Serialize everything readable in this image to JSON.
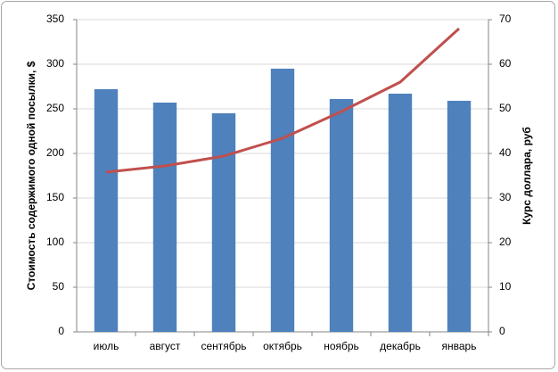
{
  "chart_data": {
    "type": "bar_line",
    "categories": [
      "июль",
      "август",
      "сентябрь",
      "октябрь",
      "ноябрь",
      "декабрь",
      "январь"
    ],
    "series": [
      {
        "type": "bar",
        "color": "#4f81bd",
        "values": [
          272,
          257,
          245,
          295,
          261,
          267,
          259
        ]
      },
      {
        "type": "line",
        "color": "#c0504d",
        "axis": "y2",
        "values": [
          35.8,
          37.2,
          39.4,
          43.4,
          49.4,
          56,
          68
        ]
      }
    ],
    "ylabel": "Стоимость содержимого одной посылки, $",
    "y2label": "Курс доллара, руб",
    "ylim": [
      0,
      350
    ],
    "yticks": [
      0,
      50,
      100,
      150,
      200,
      250,
      300,
      350
    ],
    "y2lim": [
      0,
      70
    ],
    "y2ticks": [
      0,
      10,
      20,
      30,
      40,
      50,
      60,
      70
    ],
    "grid": true
  }
}
